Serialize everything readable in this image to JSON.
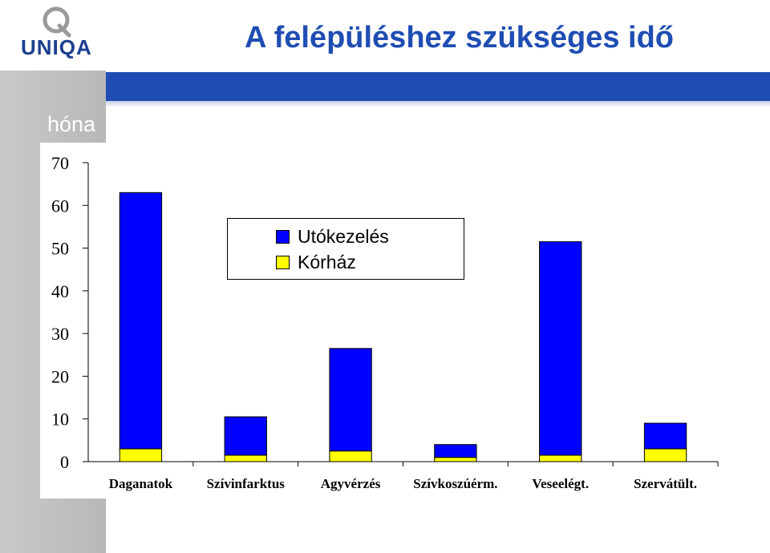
{
  "header": {
    "logo_text": "UNIQA",
    "title": "A felépüléshez szükséges idő",
    "unit_label": "hóna"
  },
  "colors": {
    "accent_blue": "#1f4db3",
    "band_grey": "#bdbdbd",
    "series_utokezeles": "#0000ff",
    "series_korhaz": "#ffff00"
  },
  "chart_data": {
    "type": "bar",
    "stacked": true,
    "title": "A felépüléshez szükséges idő",
    "ylabel": "hóna",
    "xlabel": "",
    "ylim": [
      0,
      70
    ],
    "yticks": [
      0,
      10,
      20,
      30,
      40,
      50,
      60,
      70
    ],
    "categories": [
      "Daganatok",
      "Szívinfarktus",
      "Agyvérzés",
      "Szívkoszúérm.",
      "Veseelégt.",
      "Szervátült."
    ],
    "series": [
      {
        "name": "Kórház",
        "color": "#ffff00",
        "values": [
          3,
          1.5,
          2.5,
          1,
          1.5,
          3
        ]
      },
      {
        "name": "Utókezelés",
        "color": "#0000ff",
        "values": [
          60,
          9,
          24,
          3,
          50,
          6
        ]
      }
    ],
    "legend": {
      "position": "top-center",
      "entries": [
        {
          "label": "Utókezelés",
          "color": "#0000ff"
        },
        {
          "label": "Kórház",
          "color": "#ffff00"
        }
      ]
    },
    "grid": false
  }
}
